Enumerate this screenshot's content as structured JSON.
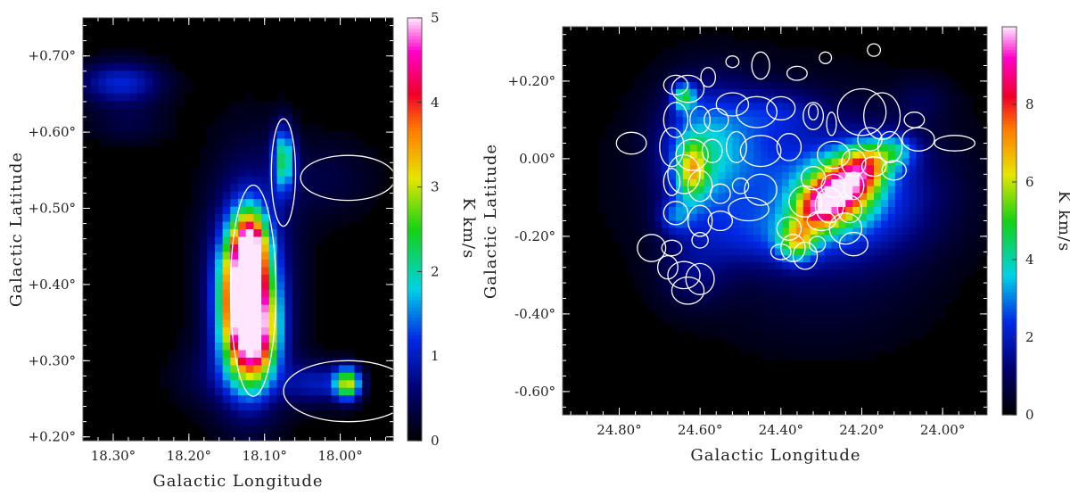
{
  "chart_data": [
    {
      "type": "heatmap",
      "xlabel": "Galactic Longitude",
      "ylabel": "Galactic Latitude",
      "xticks": [
        "18.30°",
        "18.20°",
        "18.10°",
        "18.00°"
      ],
      "xtick_values": [
        18.3,
        18.2,
        18.1,
        18.0
      ],
      "yticks": [
        "+0.20°",
        "+0.30°",
        "+0.40°",
        "+0.50°",
        "+0.60°",
        "+0.70°"
      ],
      "ytick_values": [
        0.2,
        0.3,
        0.4,
        0.5,
        0.6,
        0.7
      ],
      "xlim": [
        18.34,
        17.93
      ],
      "ylim": [
        0.195,
        0.75
      ],
      "colorbar": {
        "label": "K km/s",
        "min": 0,
        "max": 5,
        "ticks": [
          "0",
          "1",
          "2",
          "3",
          "4",
          "5"
        ],
        "tick_values": [
          0,
          1,
          2,
          3,
          4,
          5
        ]
      },
      "emission": [
        {
          "l": 18.125,
          "b": 0.38,
          "sl": 0.022,
          "sb": 0.06,
          "amp": 5.2
        },
        {
          "l": 18.12,
          "b": 0.45,
          "sl": 0.014,
          "sb": 0.03,
          "amp": 3.0
        },
        {
          "l": 18.11,
          "b": 0.33,
          "sl": 0.02,
          "sb": 0.04,
          "amp": 2.2
        },
        {
          "l": 18.12,
          "b": 0.4,
          "sl": 0.04,
          "sb": 0.11,
          "amp": 1.2
        },
        {
          "l": 18.075,
          "b": 0.565,
          "sl": 0.01,
          "sb": 0.03,
          "amp": 2.0
        },
        {
          "l": 17.99,
          "b": 0.27,
          "sl": 0.012,
          "sb": 0.015,
          "amp": 2.8
        },
        {
          "l": 18.03,
          "b": 0.27,
          "sl": 0.03,
          "sb": 0.02,
          "amp": 0.9
        },
        {
          "l": 18.29,
          "b": 0.665,
          "sl": 0.04,
          "sb": 0.02,
          "amp": 1.1
        },
        {
          "l": 18.28,
          "b": 0.61,
          "sl": 0.04,
          "sb": 0.02,
          "amp": 0.35
        },
        {
          "l": 18.02,
          "b": 0.54,
          "sl": 0.05,
          "sb": 0.04,
          "amp": 0.35
        },
        {
          "l": 18.15,
          "b": 0.28,
          "sl": 0.05,
          "sb": 0.03,
          "amp": 0.4
        }
      ],
      "ellipses": [
        {
          "l": 18.115,
          "b": 0.392,
          "rl": 0.03,
          "rb": 0.1385,
          "rot": 0
        },
        {
          "l": 18.075,
          "b": 0.547,
          "rl": 0.016,
          "rb": 0.0705,
          "rot": 0
        },
        {
          "l": 17.99,
          "b": 0.54,
          "rl": 0.0625,
          "rb": 0.0295,
          "rot": 0
        },
        {
          "l": 17.99,
          "b": 0.26,
          "rl": 0.085,
          "rb": 0.04,
          "rot": 0
        }
      ]
    },
    {
      "type": "heatmap",
      "xlabel": "Galactic Longitude",
      "ylabel": "Galactic Latitude",
      "xticks": [
        "24.80°",
        "24.60°",
        "24.40°",
        "24.20°",
        "24.00°"
      ],
      "xtick_values": [
        24.8,
        24.6,
        24.4,
        24.2,
        24.0
      ],
      "yticks": [
        "-0.60°",
        "-0.40°",
        "-0.20°",
        "0.00°",
        "+0.20°"
      ],
      "ytick_values": [
        -0.6,
        -0.4,
        -0.2,
        0.0,
        0.2
      ],
      "xlim": [
        24.94,
        23.89
      ],
      "ylim": [
        -0.66,
        0.34
      ],
      "colorbar": {
        "label": "K km/s",
        "min": 0,
        "max": 10,
        "ticks": [
          "0",
          "2",
          "4",
          "6",
          "8"
        ],
        "tick_values": [
          0,
          2,
          4,
          6,
          8
        ]
      },
      "emission": [
        {
          "l": 24.25,
          "b": -0.08,
          "sl": 0.05,
          "sb": 0.05,
          "amp": 6.5
        },
        {
          "l": 24.19,
          "b": -0.02,
          "sl": 0.04,
          "sb": 0.04,
          "amp": 4.5
        },
        {
          "l": 24.31,
          "b": -0.13,
          "sl": 0.04,
          "sb": 0.04,
          "amp": 4.5
        },
        {
          "l": 24.36,
          "b": -0.21,
          "sl": 0.03,
          "sb": 0.035,
          "amp": 4.0
        },
        {
          "l": 24.12,
          "b": 0.02,
          "sl": 0.04,
          "sb": 0.03,
          "amp": 2.5
        },
        {
          "l": 24.25,
          "b": -0.1,
          "sl": 0.15,
          "sb": 0.11,
          "amp": 2.8
        },
        {
          "l": 24.62,
          "b": -0.03,
          "sl": 0.025,
          "sb": 0.05,
          "amp": 3.8
        },
        {
          "l": 24.64,
          "b": 0.16,
          "sl": 0.02,
          "sb": 0.025,
          "amp": 3.5
        },
        {
          "l": 24.6,
          "b": 0.0,
          "sl": 0.07,
          "sb": 0.12,
          "amp": 2.2
        },
        {
          "l": 24.66,
          "b": -0.15,
          "sl": 0.03,
          "sb": 0.03,
          "amp": 1.6
        },
        {
          "l": 24.52,
          "b": 0.05,
          "sl": 0.1,
          "sb": 0.1,
          "amp": 1.4
        },
        {
          "l": 24.4,
          "b": 0.12,
          "sl": 0.08,
          "sb": 0.04,
          "amp": 1.0
        },
        {
          "l": 24.45,
          "b": -0.2,
          "sl": 0.12,
          "sb": 0.06,
          "amp": 1.2
        },
        {
          "l": 24.62,
          "b": -0.3,
          "sl": 0.06,
          "sb": 0.06,
          "amp": 0.9
        },
        {
          "l": 24.38,
          "b": -0.05,
          "sl": 0.3,
          "sb": 0.2,
          "amp": 0.7
        },
        {
          "l": 24.3,
          "b": -0.4,
          "sl": 0.2,
          "sb": 0.1,
          "amp": 0.35
        },
        {
          "l": 24.05,
          "b": 0.15,
          "sl": 0.05,
          "sb": 0.04,
          "amp": 0.6
        }
      ],
      "ellipses": [
        {
          "l": 24.77,
          "b": 0.04,
          "rl": 0.037,
          "rb": 0.028,
          "rot": 0
        },
        {
          "l": 24.66,
          "b": 0.19,
          "rl": 0.03,
          "rb": 0.025,
          "rot": 0
        },
        {
          "l": 24.63,
          "b": 0.18,
          "rl": 0.04,
          "rb": 0.035,
          "rot": 0
        },
        {
          "l": 24.58,
          "b": 0.21,
          "rl": 0.018,
          "rb": 0.025,
          "rot": 0
        },
        {
          "l": 24.52,
          "b": 0.25,
          "rl": 0.016,
          "rb": 0.015,
          "rot": 0
        },
        {
          "l": 24.45,
          "b": 0.24,
          "rl": 0.022,
          "rb": 0.035,
          "rot": 0
        },
        {
          "l": 24.36,
          "b": 0.22,
          "rl": 0.025,
          "rb": 0.018,
          "rot": 0
        },
        {
          "l": 24.29,
          "b": 0.26,
          "rl": 0.015,
          "rb": 0.015,
          "rot": 0
        },
        {
          "l": 24.17,
          "b": 0.28,
          "rl": 0.016,
          "rb": 0.016,
          "rot": 0
        },
        {
          "l": 24.52,
          "b": 0.14,
          "rl": 0.04,
          "rb": 0.03,
          "rot": 0
        },
        {
          "l": 24.46,
          "b": 0.12,
          "rl": 0.05,
          "rb": 0.04,
          "rot": 0
        },
        {
          "l": 24.4,
          "b": 0.13,
          "rl": 0.035,
          "rb": 0.03,
          "rot": 0
        },
        {
          "l": 24.32,
          "b": 0.11,
          "rl": 0.025,
          "rb": 0.035,
          "rot": 0
        },
        {
          "l": 24.32,
          "b": 0.12,
          "rl": 0.012,
          "rb": 0.02,
          "rot": 0
        },
        {
          "l": 24.275,
          "b": 0.09,
          "rl": 0.012,
          "rb": 0.03,
          "rot": 0
        },
        {
          "l": 24.56,
          "b": 0.1,
          "rl": 0.03,
          "rb": 0.03,
          "rot": 0
        },
        {
          "l": 24.6,
          "b": 0.1,
          "rl": 0.025,
          "rb": 0.035,
          "rot": 0
        },
        {
          "l": 24.66,
          "b": 0.1,
          "rl": 0.03,
          "rb": 0.045,
          "rot": 0
        },
        {
          "l": 24.51,
          "b": 0.03,
          "rl": 0.025,
          "rb": 0.04,
          "rot": 0
        },
        {
          "l": 24.45,
          "b": 0.02,
          "rl": 0.05,
          "rb": 0.04,
          "rot": 0
        },
        {
          "l": 24.38,
          "b": 0.03,
          "rl": 0.03,
          "rb": 0.035,
          "rot": 0
        },
        {
          "l": 24.67,
          "b": 0.03,
          "rl": 0.03,
          "rb": 0.05,
          "rot": 0
        },
        {
          "l": 24.62,
          "b": 0.01,
          "rl": 0.04,
          "rb": 0.04,
          "rot": 0
        },
        {
          "l": 24.57,
          "b": 0.02,
          "rl": 0.025,
          "rb": 0.03,
          "rot": 0
        },
        {
          "l": 24.64,
          "b": -0.04,
          "rl": 0.04,
          "rb": 0.05,
          "rot": 0
        },
        {
          "l": 24.6,
          "b": -0.07,
          "rl": 0.03,
          "rb": 0.04,
          "rot": 0
        },
        {
          "l": 24.67,
          "b": -0.06,
          "rl": 0.02,
          "rb": 0.035,
          "rot": 0
        },
        {
          "l": 24.55,
          "b": -0.09,
          "rl": 0.025,
          "rb": 0.025,
          "rot": 0
        },
        {
          "l": 24.5,
          "b": -0.07,
          "rl": 0.02,
          "rb": 0.02,
          "rot": 0
        },
        {
          "l": 24.45,
          "b": -0.08,
          "rl": 0.04,
          "rb": 0.04,
          "rot": 0
        },
        {
          "l": 24.48,
          "b": -0.13,
          "rl": 0.05,
          "rb": 0.03,
          "rot": 0
        },
        {
          "l": 24.66,
          "b": -0.14,
          "rl": 0.03,
          "rb": 0.03,
          "rot": 0
        },
        {
          "l": 24.6,
          "b": -0.16,
          "rl": 0.03,
          "rb": 0.04,
          "rot": 0
        },
        {
          "l": 24.55,
          "b": -0.16,
          "rl": 0.03,
          "rb": 0.025,
          "rot": 0
        },
        {
          "l": 24.67,
          "b": -0.23,
          "rl": 0.025,
          "rb": 0.02,
          "rot": 0
        },
        {
          "l": 24.6,
          "b": -0.21,
          "rl": 0.02,
          "rb": 0.02,
          "rot": 0
        },
        {
          "l": 24.72,
          "b": -0.23,
          "rl": 0.035,
          "rb": 0.035,
          "rot": 0
        },
        {
          "l": 24.68,
          "b": -0.28,
          "rl": 0.025,
          "rb": 0.03,
          "rot": 0
        },
        {
          "l": 24.64,
          "b": -0.3,
          "rl": 0.04,
          "rb": 0.035,
          "rot": 0
        },
        {
          "l": 24.6,
          "b": -0.31,
          "rl": 0.035,
          "rb": 0.04,
          "rot": 0
        },
        {
          "l": 24.63,
          "b": -0.34,
          "rl": 0.04,
          "rb": 0.035,
          "rot": 0
        },
        {
          "l": 24.2,
          "b": 0.12,
          "rl": 0.06,
          "rb": 0.06,
          "rot": 0
        },
        {
          "l": 24.15,
          "b": 0.11,
          "rl": 0.045,
          "rb": 0.06,
          "rot": 0
        },
        {
          "l": 24.07,
          "b": 0.1,
          "rl": 0.025,
          "rb": 0.02,
          "rot": 0
        },
        {
          "l": 24.18,
          "b": 0.05,
          "rl": 0.03,
          "rb": 0.03,
          "rot": 0
        },
        {
          "l": 24.13,
          "b": 0.03,
          "rl": 0.03,
          "rb": 0.04,
          "rot": 0
        },
        {
          "l": 24.06,
          "b": 0.05,
          "rl": 0.04,
          "rb": 0.03,
          "rot": 0
        },
        {
          "l": 23.97,
          "b": 0.04,
          "rl": 0.05,
          "rb": 0.02,
          "rot": 0
        },
        {
          "l": 24.27,
          "b": 0.01,
          "rl": 0.04,
          "rb": 0.035,
          "rot": 0
        },
        {
          "l": 24.22,
          "b": -0.01,
          "rl": 0.03,
          "rb": 0.035,
          "rot": 0
        },
        {
          "l": 24.17,
          "b": -0.02,
          "rl": 0.03,
          "rb": 0.025,
          "rot": 0
        },
        {
          "l": 24.12,
          "b": -0.03,
          "rl": 0.03,
          "rb": 0.025,
          "rot": 0
        },
        {
          "l": 24.32,
          "b": -0.05,
          "rl": 0.03,
          "rb": 0.03,
          "rot": 0
        },
        {
          "l": 24.27,
          "b": -0.07,
          "rl": 0.03,
          "rb": 0.03,
          "rot": 0
        },
        {
          "l": 24.22,
          "b": -0.07,
          "rl": 0.025,
          "rb": 0.035,
          "rot": 0
        },
        {
          "l": 24.34,
          "b": -0.11,
          "rl": 0.04,
          "rb": 0.04,
          "rot": 0
        },
        {
          "l": 24.28,
          "b": -0.12,
          "rl": 0.035,
          "rb": 0.045,
          "rot": 0
        },
        {
          "l": 24.23,
          "b": -0.13,
          "rl": 0.03,
          "rb": 0.035,
          "rot": 0
        },
        {
          "l": 24.3,
          "b": -0.16,
          "rl": 0.035,
          "rb": 0.025,
          "rot": 0
        },
        {
          "l": 24.38,
          "b": -0.18,
          "rl": 0.03,
          "rb": 0.03,
          "rot": 0
        },
        {
          "l": 24.24,
          "b": -0.18,
          "rl": 0.04,
          "rb": 0.04,
          "rot": 0
        },
        {
          "l": 24.37,
          "b": -0.23,
          "rl": 0.03,
          "rb": 0.035,
          "rot": 0
        },
        {
          "l": 24.34,
          "b": -0.25,
          "rl": 0.03,
          "rb": 0.035,
          "rot": 0
        },
        {
          "l": 24.31,
          "b": -0.22,
          "rl": 0.02,
          "rb": 0.02,
          "rot": 0
        },
        {
          "l": 24.4,
          "b": -0.24,
          "rl": 0.025,
          "rb": 0.02,
          "rot": 0
        },
        {
          "l": 24.22,
          "b": -0.22,
          "rl": 0.035,
          "rb": 0.03,
          "rot": 0
        }
      ]
    }
  ]
}
